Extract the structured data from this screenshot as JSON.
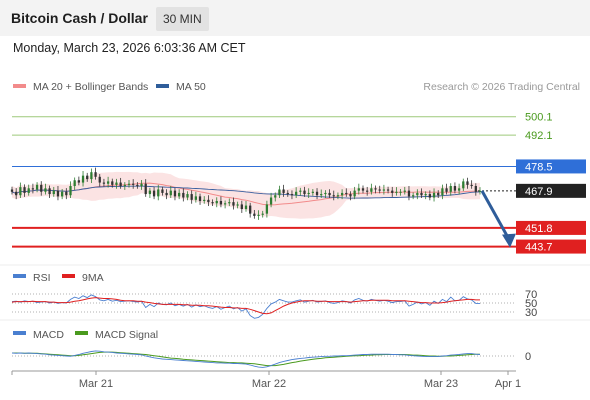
{
  "header": {
    "title": "Bitcoin Cash / Dollar",
    "timeframe": "30 MIN",
    "datetime": "Monday, March 23, 2026 6:03:36 AM CET"
  },
  "legend_main": [
    {
      "label": "MA 20 + Bollinger Bands",
      "color": "#f28b8b"
    },
    {
      "label": "MA 50",
      "color": "#2f5d9a"
    }
  ],
  "copyright": "Research © 2026 Trading Central",
  "colors": {
    "resistance": "#9dc97a",
    "resistance_text": "#4a9a1e",
    "pivot": "#2f6fd8",
    "support": "#e02020",
    "last": "#222222",
    "up": "#2e7d32",
    "down": "#333333",
    "arrow": "#2f5d9a",
    "band": "#fbe3e3",
    "ma20": "#f28b8b",
    "ma50": "#3a5f9f",
    "rsi": "#4a7fd0",
    "rsi_ma": "#e02020",
    "macd": "#4a7fd0",
    "macd_signal": "#4a9a1e"
  },
  "chart_data": [
    {
      "type": "candlestick",
      "y_range": [
        437,
        513
      ],
      "x_labels": [
        "Mar 21",
        "Mar 22",
        "Mar 23",
        "Apr 1"
      ],
      "levels": [
        {
          "value": 500.1,
          "label": "500.1",
          "kind": "resistance"
        },
        {
          "value": 492.1,
          "label": "492.1",
          "kind": "resistance"
        },
        {
          "value": 478.5,
          "label": "478.5",
          "kind": "pivot"
        },
        {
          "value": 467.9,
          "label": "467.9",
          "kind": "last"
        },
        {
          "value": 451.8,
          "label": "451.8",
          "kind": "support"
        },
        {
          "value": 443.7,
          "label": "443.7",
          "kind": "support"
        }
      ],
      "forecast": {
        "from": 467.9,
        "to": 443.7
      },
      "closes": [
        467.5,
        466.0,
        469.5,
        467.0,
        469.0,
        468.5,
        470.5,
        467.5,
        469.0,
        466.5,
        468.0,
        465.5,
        467.5,
        466.0,
        470.0,
        472.5,
        471.5,
        474.5,
        473.0,
        476.0,
        474.0,
        471.5,
        471.0,
        472.0,
        470.5,
        471.5,
        470.0,
        470.5,
        471.0,
        470.5,
        470.0,
        471.0,
        466.5,
        468.0,
        465.5,
        468.5,
        467.0,
        466.0,
        468.0,
        465.5,
        467.0,
        465.0,
        466.5,
        464.0,
        465.5,
        463.5,
        464.0,
        463.0,
        462.5,
        463.5,
        462.0,
        462.5,
        463.0,
        461.5,
        462.0,
        460.0,
        461.5,
        458.0,
        457.0,
        457.5,
        458.0,
        462.0,
        465.0,
        466.0,
        468.5,
        467.0,
        466.5,
        466.0,
        467.5,
        468.0,
        466.5,
        467.0,
        467.5,
        466.0,
        466.5,
        467.0,
        466.0,
        465.5,
        466.0,
        467.0,
        466.5,
        465.5,
        468.0,
        469.0,
        468.0,
        467.5,
        469.0,
        468.5,
        468.0,
        468.5,
        468.0,
        467.0,
        467.5,
        467.5,
        468.0,
        465.5,
        466.0,
        467.0,
        466.0,
        466.5,
        465.0,
        467.0,
        466.0,
        469.0,
        467.5,
        470.0,
        468.0,
        469.0,
        472.0,
        470.5,
        470.0,
        467.5,
        467.9
      ]
    },
    {
      "type": "line",
      "name": "RSI",
      "legend": [
        "RSI",
        "9MA"
      ],
      "levels": [
        70,
        50,
        30
      ],
      "level_labels": [
        "70",
        "50",
        "30"
      ],
      "rsi": [
        53,
        54,
        52,
        55,
        53,
        54,
        51,
        52,
        53,
        50,
        52,
        49,
        51,
        50,
        58,
        63,
        60,
        66,
        62,
        68,
        64,
        57,
        55,
        58,
        54,
        56,
        53,
        54,
        55,
        53,
        52,
        54,
        40,
        47,
        42,
        50,
        47,
        46,
        50,
        44,
        47,
        43,
        47,
        41,
        46,
        42,
        44,
        40,
        38,
        42,
        36,
        40,
        43,
        37,
        40,
        32,
        37,
        22,
        16,
        18,
        25,
        38,
        48,
        52,
        58,
        55,
        52,
        52,
        55,
        57,
        52,
        54,
        56,
        52,
        53,
        55,
        51,
        49,
        51,
        55,
        53,
        50,
        57,
        60,
        56,
        54,
        58,
        56,
        54,
        56,
        54,
        51,
        53,
        53,
        55,
        43,
        47,
        52,
        48,
        51,
        45,
        54,
        49,
        58,
        53,
        63,
        55,
        56,
        64,
        59,
        57,
        49,
        49
      ],
      "rsi_ma": [
        52,
        53,
        53,
        53,
        53,
        54,
        53,
        53,
        53,
        52,
        52,
        51,
        51,
        51,
        52,
        54,
        55,
        57,
        59,
        61,
        62,
        61,
        60,
        60,
        59,
        58,
        56,
        55,
        55,
        55,
        54,
        54,
        52,
        51,
        49,
        48,
        47,
        47,
        47,
        47,
        47,
        46,
        46,
        45,
        45,
        45,
        44,
        44,
        43,
        42,
        41,
        40,
        40,
        39,
        39,
        38,
        38,
        36,
        33,
        30,
        27,
        26,
        28,
        33,
        38,
        43,
        47,
        50,
        52,
        54,
        55,
        55,
        55,
        54,
        54,
        54,
        53,
        53,
        53,
        53,
        53,
        52,
        53,
        54,
        55,
        55,
        56,
        56,
        56,
        56,
        56,
        55,
        55,
        55,
        55,
        54,
        53,
        52,
        51,
        51,
        50,
        50,
        50,
        51,
        52,
        54,
        55,
        56,
        57,
        58,
        58,
        57,
        57
      ]
    },
    {
      "type": "line",
      "name": "MACD",
      "legend": [
        "MACD",
        "MACD Signal"
      ],
      "levels": [
        0
      ],
      "level_labels": [
        "0"
      ],
      "macd": [
        1.0,
        0.9,
        1.0,
        0.9,
        1.0,
        0.9,
        0.8,
        0.7,
        0.6,
        0.4,
        0.3,
        0.2,
        0.1,
        0.0,
        -0.1,
        0.2,
        0.5,
        0.9,
        1.2,
        1.5,
        1.7,
        1.6,
        1.4,
        1.3,
        1.2,
        1.0,
        0.9,
        0.8,
        0.7,
        0.6,
        0.5,
        0.4,
        0.0,
        -0.3,
        -0.6,
        -0.8,
        -1.0,
        -1.1,
        -1.2,
        -1.3,
        -1.4,
        -1.5,
        -1.6,
        -1.7,
        -1.8,
        -1.9,
        -2.0,
        -2.1,
        -2.2,
        -2.3,
        -2.3,
        -2.4,
        -2.4,
        -2.5,
        -2.5,
        -2.6,
        -2.7,
        -3.0,
        -3.4,
        -3.7,
        -3.8,
        -3.6,
        -3.2,
        -2.7,
        -2.2,
        -1.8,
        -1.5,
        -1.2,
        -1.0,
        -0.8,
        -0.7,
        -0.5,
        -0.4,
        -0.3,
        -0.2,
        -0.1,
        -0.1,
        0.0,
        0.0,
        0.1,
        0.1,
        0.2,
        0.3,
        0.4,
        0.5,
        0.5,
        0.6,
        0.6,
        0.6,
        0.6,
        0.6,
        0.5,
        0.5,
        0.4,
        0.4,
        0.2,
        0.1,
        0.0,
        -0.1,
        -0.2,
        -0.2,
        -0.2,
        -0.2,
        0.0,
        0.1,
        0.3,
        0.4,
        0.5,
        0.7,
        0.8,
        0.8,
        0.6,
        0.5
      ],
      "signal": [
        1.0,
        1.0,
        1.0,
        0.9,
        0.9,
        0.9,
        0.9,
        0.8,
        0.7,
        0.6,
        0.5,
        0.4,
        0.3,
        0.2,
        0.1,
        0.1,
        0.2,
        0.4,
        0.6,
        0.8,
        1.0,
        1.2,
        1.3,
        1.3,
        1.3,
        1.2,
        1.1,
        1.0,
        0.9,
        0.8,
        0.7,
        0.6,
        0.5,
        0.3,
        0.1,
        -0.1,
        -0.3,
        -0.5,
        -0.7,
        -0.8,
        -0.9,
        -1.1,
        -1.2,
        -1.3,
        -1.4,
        -1.5,
        -1.6,
        -1.7,
        -1.8,
        -1.9,
        -2.0,
        -2.1,
        -2.2,
        -2.2,
        -2.3,
        -2.3,
        -2.4,
        -2.5,
        -2.6,
        -2.8,
        -3.0,
        -3.2,
        -3.2,
        -3.2,
        -3.0,
        -2.8,
        -2.5,
        -2.2,
        -2.0,
        -1.7,
        -1.5,
        -1.3,
        -1.1,
        -0.9,
        -0.8,
        -0.6,
        -0.5,
        -0.4,
        -0.3,
        -0.2,
        -0.1,
        0.0,
        0.1,
        0.1,
        0.2,
        0.3,
        0.3,
        0.4,
        0.4,
        0.5,
        0.5,
        0.5,
        0.5,
        0.5,
        0.5,
        0.4,
        0.3,
        0.3,
        0.2,
        0.1,
        0.0,
        0.0,
        -0.1,
        -0.1,
        0.0,
        0.0,
        0.1,
        0.2,
        0.3,
        0.4,
        0.5,
        0.6,
        0.6
      ]
    }
  ]
}
